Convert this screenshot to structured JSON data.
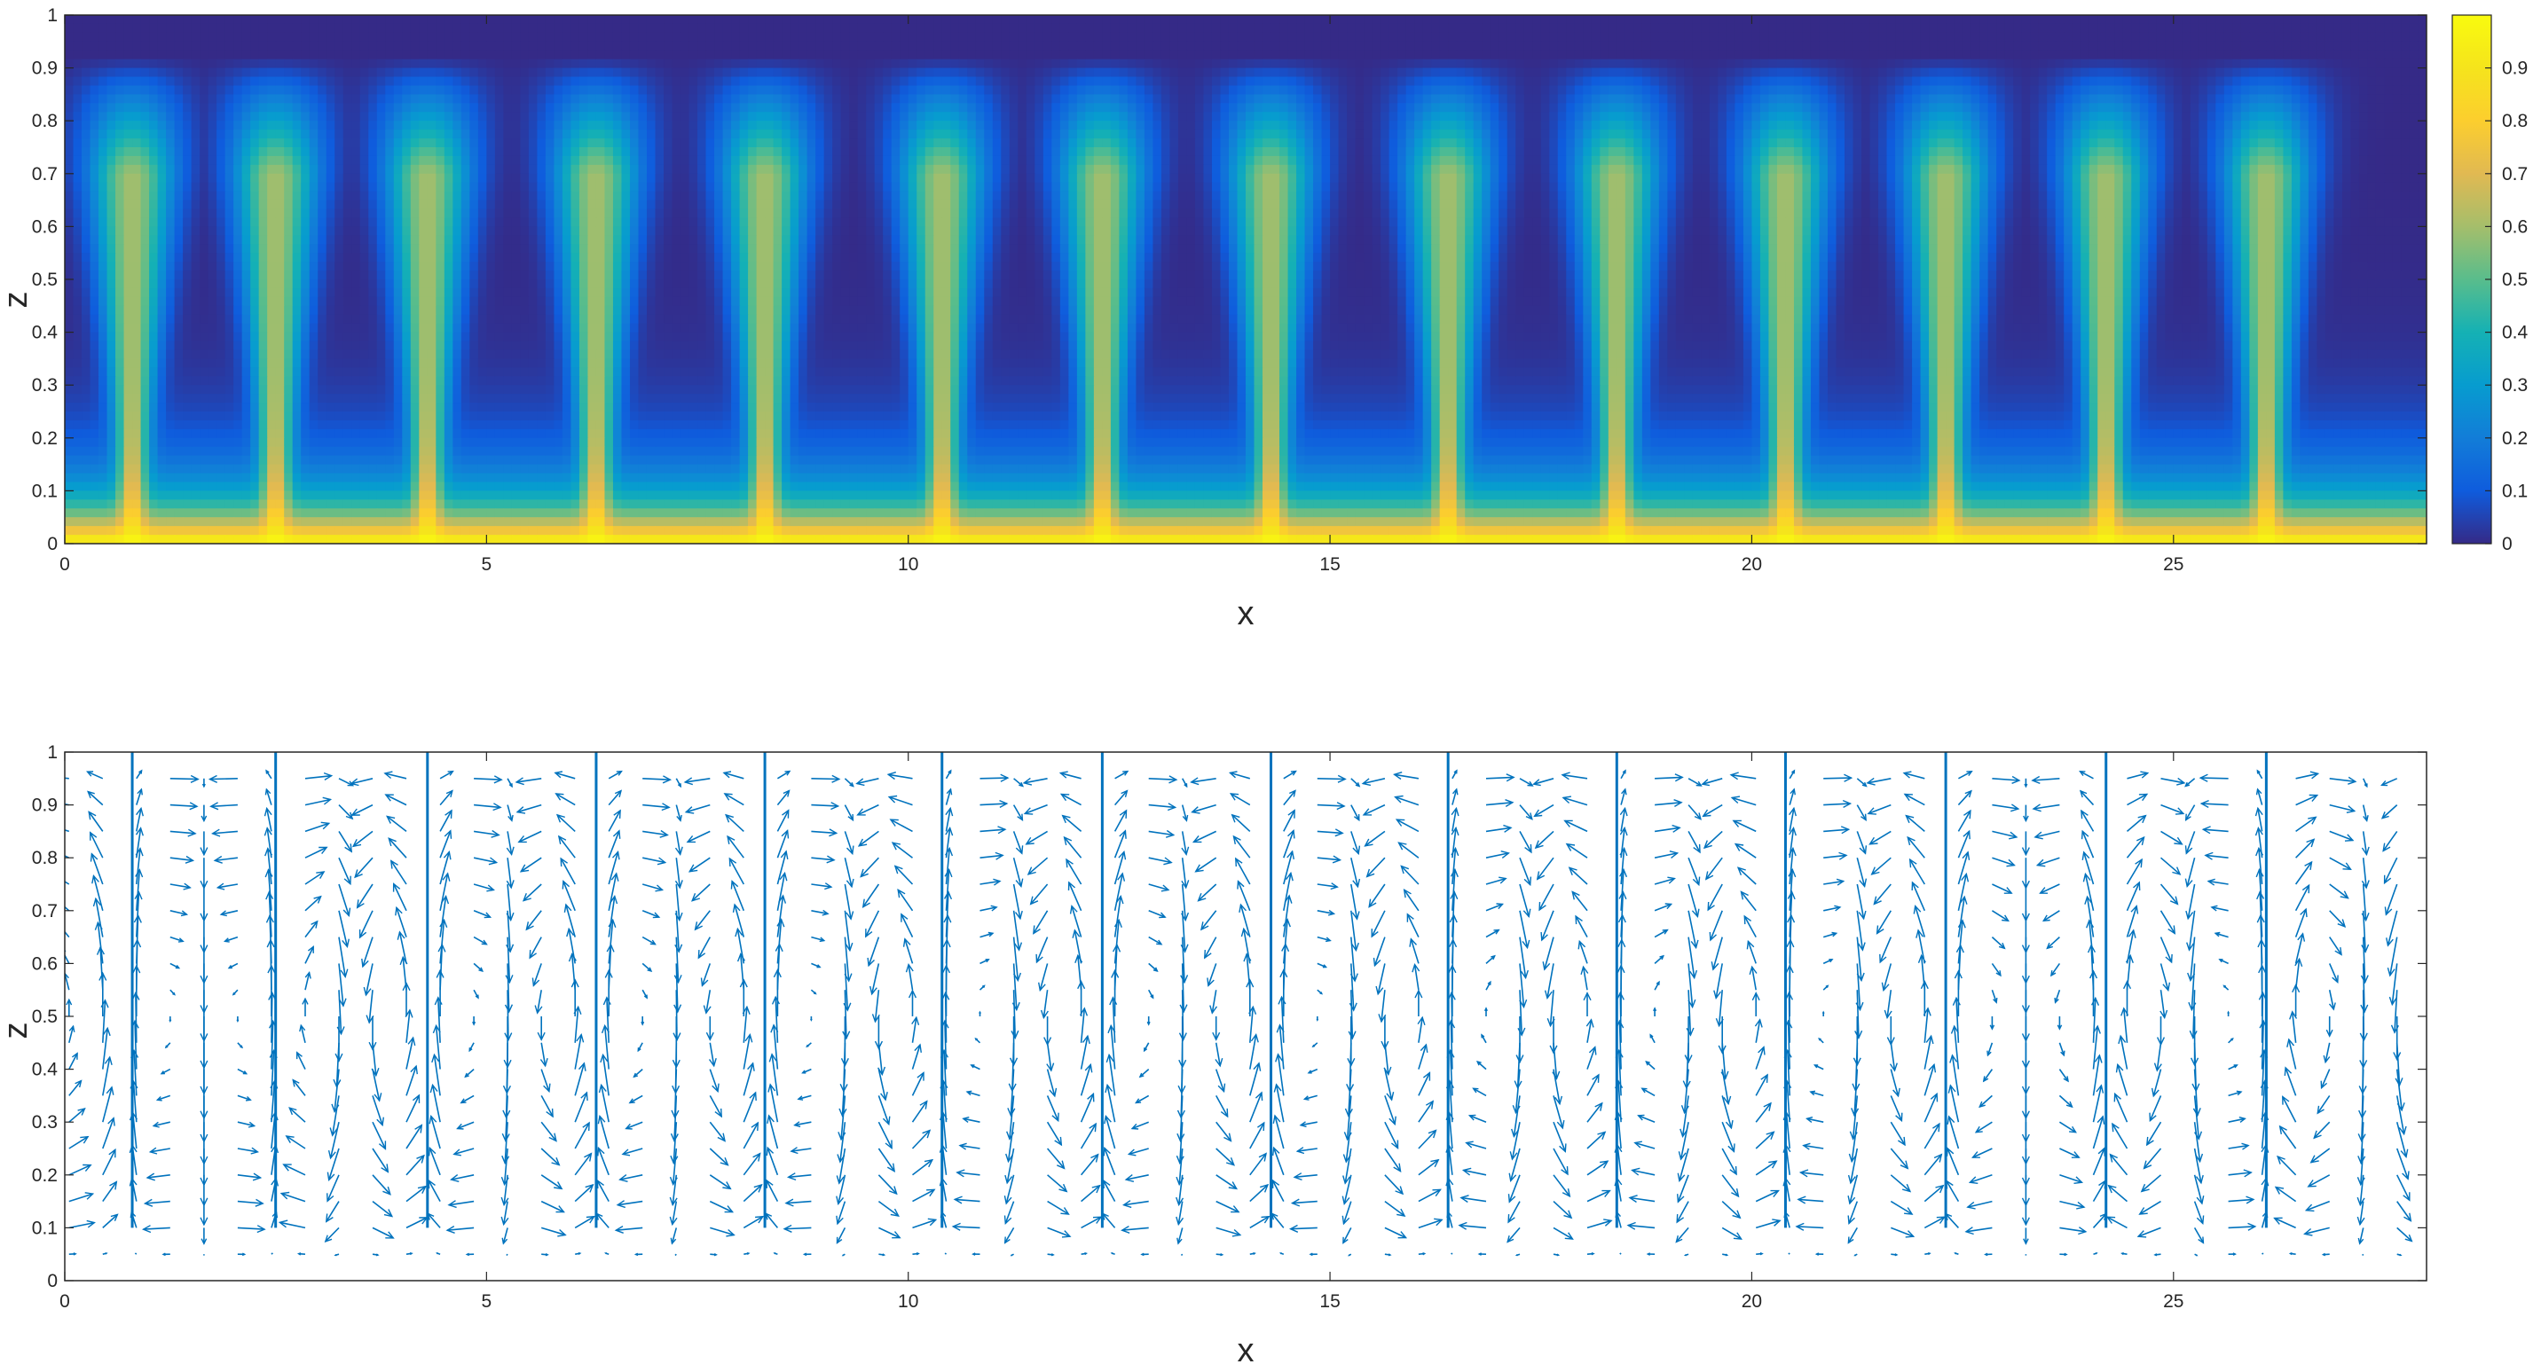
{
  "chart_data": [
    {
      "type": "heatmap",
      "title": "",
      "xlabel": "x",
      "ylabel": "z",
      "xlim": [
        0,
        28
      ],
      "ylim": [
        0,
        1
      ],
      "xticks": [
        0,
        5,
        10,
        15,
        20,
        25
      ],
      "yticks": [
        0,
        0.1,
        0.2,
        0.3,
        0.4,
        0.5,
        0.6,
        0.7,
        0.8,
        0.9,
        1
      ],
      "colormap": "parula",
      "colorbar": {
        "range": [
          0,
          1
        ],
        "ticks": [
          0,
          0.1,
          0.2,
          0.3,
          0.4,
          0.5,
          0.6,
          0.7,
          0.8,
          0.9
        ],
        "placement": "right"
      },
      "plume_centers_x": [
        0.8,
        2.5,
        4.3,
        6.3,
        8.3,
        10.4,
        12.3,
        14.3,
        16.4,
        18.4,
        20.4,
        22.3,
        24.2,
        26.1
      ],
      "field_description": {
        "bottom_value": 1.0,
        "top_value": 0.0,
        "plume_peak_value": 0.65,
        "plume_top_z": 0.86
      },
      "grid": false
    },
    {
      "type": "quiver",
      "title": "",
      "xlabel": "x",
      "ylabel": "z",
      "xlim": [
        0,
        28
      ],
      "ylim": [
        0,
        1
      ],
      "xticks": [
        0,
        5,
        10,
        15,
        20,
        25
      ],
      "yticks": [
        0,
        0.1,
        0.2,
        0.3,
        0.4,
        0.5,
        0.6,
        0.7,
        0.8,
        0.9,
        1
      ],
      "arrow_color": "#0072bd",
      "upflow_x": [
        0.8,
        2.5,
        4.3,
        6.3,
        8.3,
        10.4,
        12.3,
        14.3,
        16.4,
        18.4,
        20.4,
        22.3,
        24.2,
        26.1
      ],
      "downflow_x": [
        1.65,
        3.4,
        5.3,
        7.3,
        9.35,
        11.35,
        13.3,
        15.35,
        17.4,
        19.4,
        21.35,
        23.25,
        25.15,
        27.3
      ],
      "grid_x_spacing": 0.4,
      "grid_z_levels": [
        0.05,
        0.1,
        0.15,
        0.2,
        0.25,
        0.3,
        0.35,
        0.4,
        0.45,
        0.5,
        0.55,
        0.6,
        0.65,
        0.7,
        0.75,
        0.8,
        0.85,
        0.9,
        0.95
      ],
      "grid": false
    }
  ],
  "axes_text": {
    "top_xlabel": "x",
    "top_ylabel": "z",
    "bottom_xlabel": "x",
    "bottom_ylabel": "z"
  }
}
